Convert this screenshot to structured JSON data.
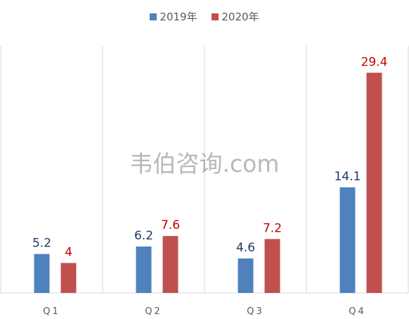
{
  "chart_data": {
    "type": "bar",
    "categories": [
      "Q1",
      "Q2",
      "Q3",
      "Q4"
    ],
    "series": [
      {
        "name": "2019年",
        "values": [
          5.2,
          6.2,
          4.6,
          14.1
        ],
        "color": "#4f81bd",
        "label_color": "#1f3864"
      },
      {
        "name": "2020年",
        "values": [
          4,
          7.6,
          7.2,
          29.4
        ],
        "color": "#c0504d",
        "label_color": "#c00000"
      }
    ],
    "ylim": [
      0,
      33
    ],
    "grid": false,
    "legend": "top-center"
  },
  "watermark": "韦伯咨询.com"
}
